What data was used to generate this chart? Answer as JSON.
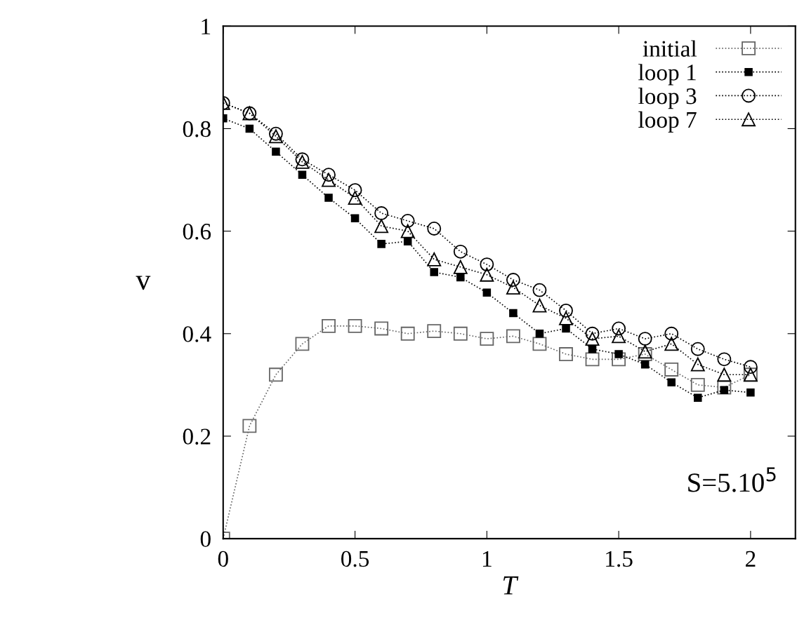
{
  "chart_data": {
    "type": "line",
    "xlabel": "T",
    "ylabel": "v",
    "x": [
      0,
      0.1,
      0.2,
      0.3,
      0.4,
      0.5,
      0.6,
      0.7,
      0.8,
      0.9,
      1.0,
      1.1,
      1.2,
      1.3,
      1.4,
      1.5,
      1.6,
      1.7,
      1.8,
      1.9,
      2.0
    ],
    "series": [
      {
        "name": "initial",
        "color": "#666666",
        "marker": "square",
        "values": [
          0.0,
          0.22,
          0.32,
          0.38,
          0.415,
          0.415,
          0.41,
          0.4,
          0.405,
          0.4,
          0.39,
          0.395,
          0.38,
          0.36,
          0.35,
          0.35,
          0.36,
          0.33,
          0.3,
          0.295,
          0.32
        ]
      },
      {
        "name": "loop 1",
        "color": "#000000",
        "marker": "square",
        "values": [
          0.82,
          0.8,
          0.755,
          0.71,
          0.665,
          0.625,
          0.575,
          0.58,
          0.52,
          0.51,
          0.48,
          0.44,
          0.4,
          0.41,
          0.37,
          0.36,
          0.34,
          0.305,
          0.275,
          0.29,
          0.285
        ]
      },
      {
        "name": "loop 3",
        "color": "#000000",
        "marker": "circle",
        "values": [
          0.85,
          0.83,
          0.79,
          0.74,
          0.71,
          0.68,
          0.635,
          0.62,
          0.605,
          0.56,
          0.535,
          0.505,
          0.485,
          0.445,
          0.4,
          0.41,
          0.39,
          0.4,
          0.37,
          0.35,
          0.335
        ]
      },
      {
        "name": "loop 7",
        "color": "#000000",
        "marker": "triangle",
        "values": [
          0.85,
          0.83,
          0.785,
          0.735,
          0.7,
          0.665,
          0.61,
          0.6,
          0.545,
          0.53,
          0.515,
          0.49,
          0.455,
          0.43,
          0.39,
          0.395,
          0.365,
          0.38,
          0.34,
          0.32,
          0.32
        ]
      }
    ],
    "xlim": [
      0,
      2.17
    ],
    "ylim": [
      0,
      1
    ],
    "xticks": [
      0,
      0.5,
      1,
      1.5,
      2
    ],
    "yticks": [
      0,
      0.2,
      0.4,
      0.6,
      0.8,
      1
    ],
    "line_style": "dotted",
    "grid": false,
    "legend": "top right",
    "annotations": [
      {
        "text": "S=5.10$^{5}$"
      }
    ]
  }
}
